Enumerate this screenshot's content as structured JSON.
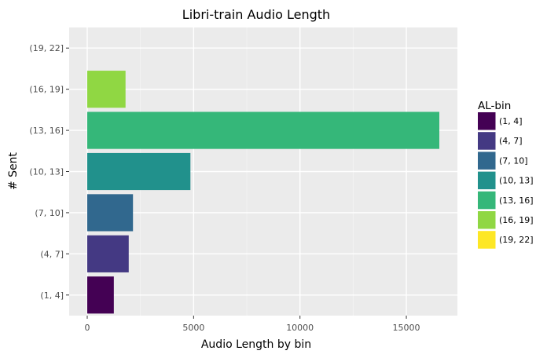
{
  "chart_data": {
    "type": "bar",
    "orientation": "horizontal",
    "title": "Libri-train Audio Length",
    "xlabel": "Audio Length by bin",
    "ylabel": "# Sent",
    "categories": [
      "(1, 4]",
      "(4, 7]",
      "(7, 10]",
      "(10, 13]",
      "(13, 16]",
      "(16, 19]",
      "(19, 22]"
    ],
    "values": [
      1250,
      1950,
      2150,
      4850,
      16550,
      1800,
      0
    ],
    "colors": [
      "#440154",
      "#443983",
      "#31688e",
      "#21918c",
      "#35b779",
      "#90d743",
      "#fde725"
    ],
    "xlim": [
      -850,
      17400
    ],
    "xticks": [
      0,
      5000,
      10000,
      15000
    ],
    "xtick_labels": [
      "0",
      "5000",
      "10000",
      "15000"
    ],
    "grid": true,
    "legend": {
      "title": "AL-bin",
      "position": "right",
      "entries": [
        "(1, 4]",
        "(4, 7]",
        "(7, 10]",
        "(10, 13]",
        "(13, 16]",
        "(16, 19]",
        "(19, 22]"
      ]
    }
  }
}
